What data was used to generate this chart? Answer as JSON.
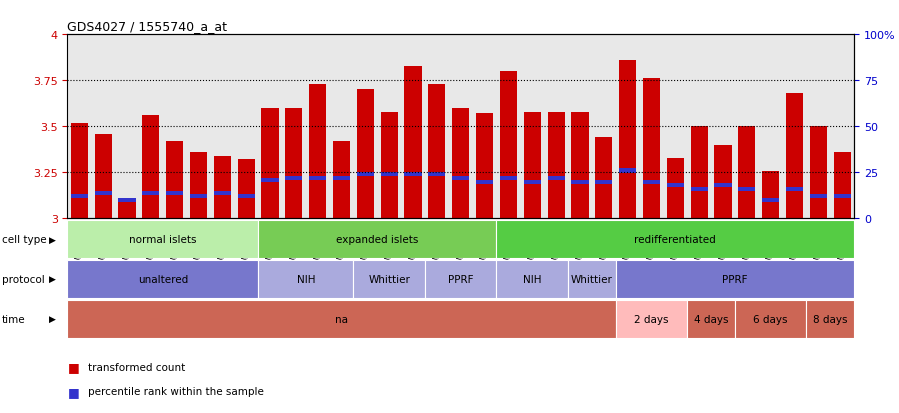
{
  "title": "GDS4027 / 1555740_a_at",
  "samples": [
    "GSM388749",
    "GSM388750",
    "GSM388753",
    "GSM388754",
    "GSM388759",
    "GSM388760",
    "GSM388766",
    "GSM388767",
    "GSM388757",
    "GSM388763",
    "GSM388769",
    "GSM388770",
    "GSM388752",
    "GSM388761",
    "GSM388765",
    "GSM388771",
    "GSM388744",
    "GSM388751",
    "GSM388755",
    "GSM388758",
    "GSM388768",
    "GSM388772",
    "GSM388756",
    "GSM388762",
    "GSM388764",
    "GSM388745",
    "GSM388746",
    "GSM388740",
    "GSM388747",
    "GSM388741",
    "GSM388748",
    "GSM388742",
    "GSM388743"
  ],
  "bar_values": [
    3.52,
    3.46,
    3.09,
    3.56,
    3.42,
    3.36,
    3.34,
    3.32,
    3.6,
    3.6,
    3.73,
    3.42,
    3.7,
    3.58,
    3.83,
    3.73,
    3.6,
    3.57,
    3.8,
    3.58,
    3.58,
    3.58,
    3.44,
    3.86,
    3.76,
    3.33,
    3.5,
    3.4,
    3.5,
    3.26,
    3.68,
    3.5,
    3.36
  ],
  "blue_marker_values": [
    3.12,
    3.14,
    3.1,
    3.14,
    3.14,
    3.12,
    3.14,
    3.12,
    3.21,
    3.22,
    3.22,
    3.22,
    3.24,
    3.24,
    3.24,
    3.24,
    3.22,
    3.2,
    3.22,
    3.2,
    3.22,
    3.2,
    3.2,
    3.26,
    3.2,
    3.18,
    3.16,
    3.18,
    3.16,
    3.1,
    3.16,
    3.12,
    3.12
  ],
  "ymin": 3.0,
  "ymax": 4.0,
  "yticks_left": [
    3.0,
    3.25,
    3.5,
    3.75,
    4.0
  ],
  "yticks_left_labels": [
    "3",
    "3.25",
    "3.5",
    "3.75",
    "4"
  ],
  "yticks_right": [
    0,
    25,
    50,
    75,
    100
  ],
  "yticks_right_labels": [
    "0",
    "25",
    "50",
    "75",
    "100%"
  ],
  "bar_color": "#CC0000",
  "blue_color": "#3333CC",
  "tick_label_color_left": "#CC0000",
  "tick_label_color_right": "#0000CC",
  "cell_type_groups": [
    {
      "label": "normal islets",
      "start": 0,
      "end": 8,
      "color": "#BBEEAA"
    },
    {
      "label": "expanded islets",
      "start": 8,
      "end": 18,
      "color": "#77CC55"
    },
    {
      "label": "redifferentiated",
      "start": 18,
      "end": 33,
      "color": "#55CC44"
    }
  ],
  "protocol_groups": [
    {
      "label": "unaltered",
      "start": 0,
      "end": 8,
      "color": "#7777CC"
    },
    {
      "label": "NIH",
      "start": 8,
      "end": 12,
      "color": "#AAAADD"
    },
    {
      "label": "Whittier",
      "start": 12,
      "end": 15,
      "color": "#AAAADD"
    },
    {
      "label": "PPRF",
      "start": 15,
      "end": 18,
      "color": "#AAAADD"
    },
    {
      "label": "NIH",
      "start": 18,
      "end": 21,
      "color": "#AAAADD"
    },
    {
      "label": "Whittier",
      "start": 21,
      "end": 23,
      "color": "#AAAADD"
    },
    {
      "label": "PPRF",
      "start": 23,
      "end": 33,
      "color": "#7777CC"
    }
  ],
  "time_groups": [
    {
      "label": "na",
      "start": 0,
      "end": 23,
      "color": "#CC6655"
    },
    {
      "label": "2 days",
      "start": 23,
      "end": 26,
      "color": "#FFBBBB"
    },
    {
      "label": "4 days",
      "start": 26,
      "end": 28,
      "color": "#CC6655"
    },
    {
      "label": "6 days",
      "start": 28,
      "end": 31,
      "color": "#CC6655"
    },
    {
      "label": "8 days",
      "start": 31,
      "end": 33,
      "color": "#CC6655"
    }
  ],
  "legend": [
    {
      "color": "#CC0000",
      "label": "transformed count"
    },
    {
      "color": "#3333CC",
      "label": "percentile rank within the sample"
    }
  ],
  "row_labels": [
    "cell type",
    "protocol",
    "time"
  ],
  "dotted_lines": [
    3.25,
    3.5,
    3.75
  ]
}
